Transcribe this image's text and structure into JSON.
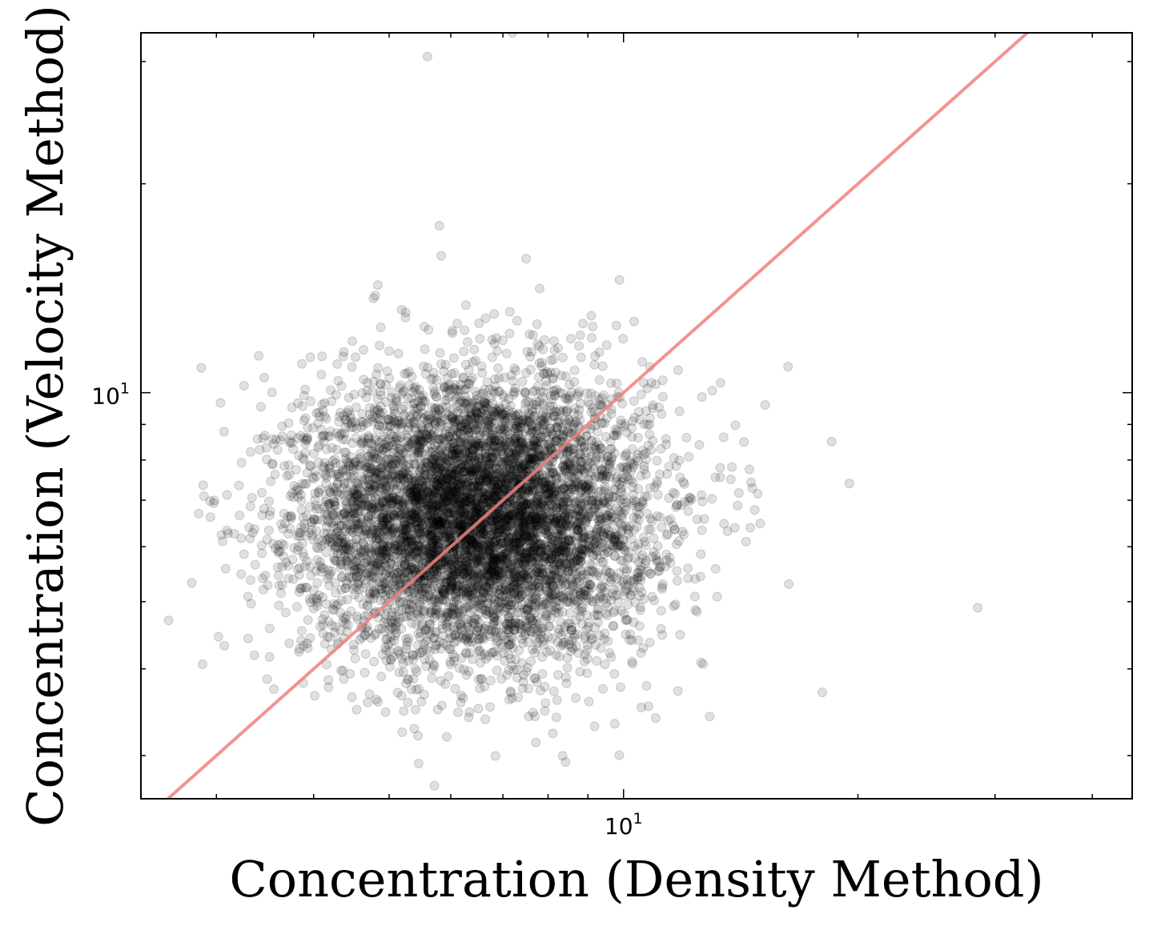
{
  "chart_data": {
    "type": "scatter",
    "title": "",
    "xlabel": "Concentration (Density Method)",
    "ylabel": "Concentration (Velocity Method)",
    "xscale": "log",
    "yscale": "log",
    "xlim": [
      2.4,
      45
    ],
    "ylim": [
      2.6,
      33
    ],
    "grid": false,
    "x_tick_labels": [
      {
        "value": 10,
        "base": "10",
        "exp": "1"
      }
    ],
    "y_tick_labels": [
      {
        "value": 10,
        "base": "10",
        "exp": "1"
      }
    ],
    "marker_color": "#000000",
    "marker_alpha": 0.12,
    "reference_line": {
      "type": "one-to-one",
      "color": "#f08080",
      "alpha": 0.85
    },
    "series": [
      {
        "points_note_count": 7000,
        "cluster_center": [
          6.5,
          6.6
        ],
        "cluster_spread_log10": [
          0.11,
          0.1
        ],
        "outliers": [
          [
            28.5,
            4.9
          ],
          [
            19.5,
            7.4
          ],
          [
            18.5,
            8.5
          ],
          [
            18.0,
            3.7
          ],
          [
            16.3,
            5.3
          ],
          [
            15.2,
            9.6
          ],
          [
            7.2,
            33.0
          ],
          [
            5.6,
            30.5
          ],
          [
            5.8,
            17.4
          ],
          [
            7.5,
            15.6
          ],
          [
            4.8,
            13.8
          ],
          [
            7.3,
            12.7
          ],
          [
            8.8,
            12.1
          ],
          [
            9.1,
            12.0
          ],
          [
            3.4,
            11.3
          ]
        ]
      }
    ]
  }
}
